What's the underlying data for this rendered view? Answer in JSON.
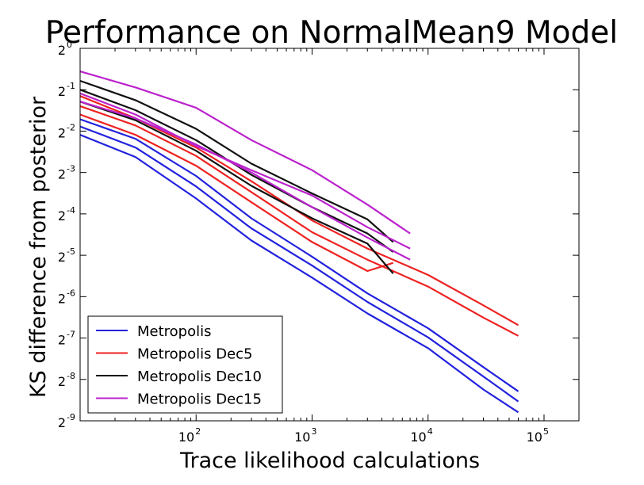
{
  "chart_data": {
    "type": "line",
    "title": "Performance on NormalMean9 Model",
    "xlabel": "Trace likelihood calculations",
    "ylabel": "KS difference from posterior",
    "x_scale": "log10",
    "y_scale": "log2",
    "xlim": [
      10,
      200000
    ],
    "ylim": [
      0.001953125,
      1
    ],
    "x_ticks": [
      {
        "value": 100,
        "base": "10",
        "exp": "2"
      },
      {
        "value": 1000,
        "base": "10",
        "exp": "3"
      },
      {
        "value": 10000,
        "base": "10",
        "exp": "4"
      },
      {
        "value": 100000,
        "base": "10",
        "exp": "5"
      }
    ],
    "y_ticks": [
      {
        "value": 1,
        "base": "2",
        "exp": "0"
      },
      {
        "value": 0.5,
        "base": "2",
        "exp": "-1"
      },
      {
        "value": 0.25,
        "base": "2",
        "exp": "-2"
      },
      {
        "value": 0.125,
        "base": "2",
        "exp": "-3"
      },
      {
        "value": 0.0625,
        "base": "2",
        "exp": "-4"
      },
      {
        "value": 0.03125,
        "base": "2",
        "exp": "-5"
      },
      {
        "value": 0.015625,
        "base": "2",
        "exp": "-6"
      },
      {
        "value": 0.0078125,
        "base": "2",
        "exp": "-7"
      },
      {
        "value": 0.00390625,
        "base": "2",
        "exp": "-8"
      },
      {
        "value": 0.001953125,
        "base": "2",
        "exp": "-9"
      }
    ],
    "grid": false,
    "legend_position": "lower-left",
    "legend": [
      {
        "name": "Metropolis",
        "color": "#2222dd"
      },
      {
        "name": "Metropolis Dec5",
        "color": "#ee2222"
      },
      {
        "name": "Metropolis Dec10",
        "color": "#111111"
      },
      {
        "name": "Metropolis Dec15",
        "color": "#bb22cc"
      }
    ],
    "series": [
      {
        "group": "Metropolis",
        "color": "#2222dd",
        "x": [
          10,
          30,
          100,
          300,
          1000,
          3000,
          10000,
          30000,
          60000
        ],
        "y": [
          0.305,
          0.22,
          0.118,
          0.058,
          0.0305,
          0.0165,
          0.0092,
          0.0048,
          0.0032
        ]
      },
      {
        "group": "Metropolis",
        "color": "#2222dd",
        "x": [
          10,
          30,
          100,
          300,
          1000,
          3000,
          10000,
          30000,
          60000
        ],
        "y": [
          0.27,
          0.19,
          0.099,
          0.049,
          0.0263,
          0.0143,
          0.0079,
          0.0041,
          0.0027
        ]
      },
      {
        "group": "Metropolis",
        "color": "#2222dd",
        "x": [
          10,
          30,
          100,
          300,
          1000,
          3000,
          10000,
          30000,
          60000
        ],
        "y": [
          0.235,
          0.162,
          0.081,
          0.04,
          0.0215,
          0.0118,
          0.0066,
          0.0033,
          0.00225
        ]
      },
      {
        "group": "Metropolis Dec5",
        "color": "#ee2222",
        "x": [
          10,
          30,
          100,
          300,
          1000,
          3000,
          10000,
          30000,
          60000
        ],
        "y": [
          0.45,
          0.31,
          0.19,
          0.108,
          0.056,
          0.035,
          0.0225,
          0.0135,
          0.0097
        ]
      },
      {
        "group": "Metropolis Dec5",
        "color": "#ee2222",
        "x": [
          10,
          30,
          100,
          300,
          1000,
          3000,
          10000,
          30000,
          60000
        ],
        "y": [
          0.38,
          0.275,
          0.165,
          0.09,
          0.046,
          0.029,
          0.0185,
          0.011,
          0.0081
        ]
      },
      {
        "group": "Metropolis Dec5",
        "color": "#ee2222",
        "x": [
          10,
          30,
          100,
          300,
          1000,
          3000,
          5000
        ],
        "y": [
          0.33,
          0.235,
          0.14,
          0.076,
          0.039,
          0.024,
          0.0275
        ]
      },
      {
        "group": "Metropolis Dec10",
        "color": "#111111",
        "x": [
          10,
          30,
          100,
          300,
          1000,
          3000,
          5000
        ],
        "y": [
          0.58,
          0.42,
          0.26,
          0.145,
          0.088,
          0.057,
          0.039
        ]
      },
      {
        "group": "Metropolis Dec10",
        "color": "#111111",
        "x": [
          10,
          30,
          100,
          300,
          1000,
          3000,
          5000
        ],
        "y": [
          0.5,
          0.355,
          0.215,
          0.12,
          0.07,
          0.045,
          0.033
        ]
      },
      {
        "group": "Metropolis Dec10",
        "color": "#111111",
        "x": [
          10,
          30,
          100,
          300,
          1000,
          3000,
          5000
        ],
        "y": [
          0.41,
          0.3,
          0.18,
          0.1,
          0.058,
          0.038,
          0.023
        ]
      },
      {
        "group": "Metropolis Dec15",
        "color": "#bb22cc",
        "x": [
          10,
          30,
          100,
          300,
          1000,
          3000,
          7000
        ],
        "y": [
          0.68,
          0.52,
          0.37,
          0.215,
          0.13,
          0.073,
          0.045
        ]
      },
      {
        "group": "Metropolis Dec15",
        "color": "#bb22cc",
        "x": [
          10,
          30,
          100,
          300,
          1000,
          3000,
          7000
        ],
        "y": [
          0.47,
          0.33,
          0.195,
          0.13,
          0.085,
          0.05,
          0.035
        ]
      },
      {
        "group": "Metropolis Dec15",
        "color": "#bb22cc",
        "x": [
          10,
          30,
          100,
          300,
          1000,
          3000,
          7000
        ],
        "y": [
          0.41,
          0.31,
          0.2,
          0.125,
          0.07,
          0.042,
          0.029
        ]
      }
    ]
  }
}
